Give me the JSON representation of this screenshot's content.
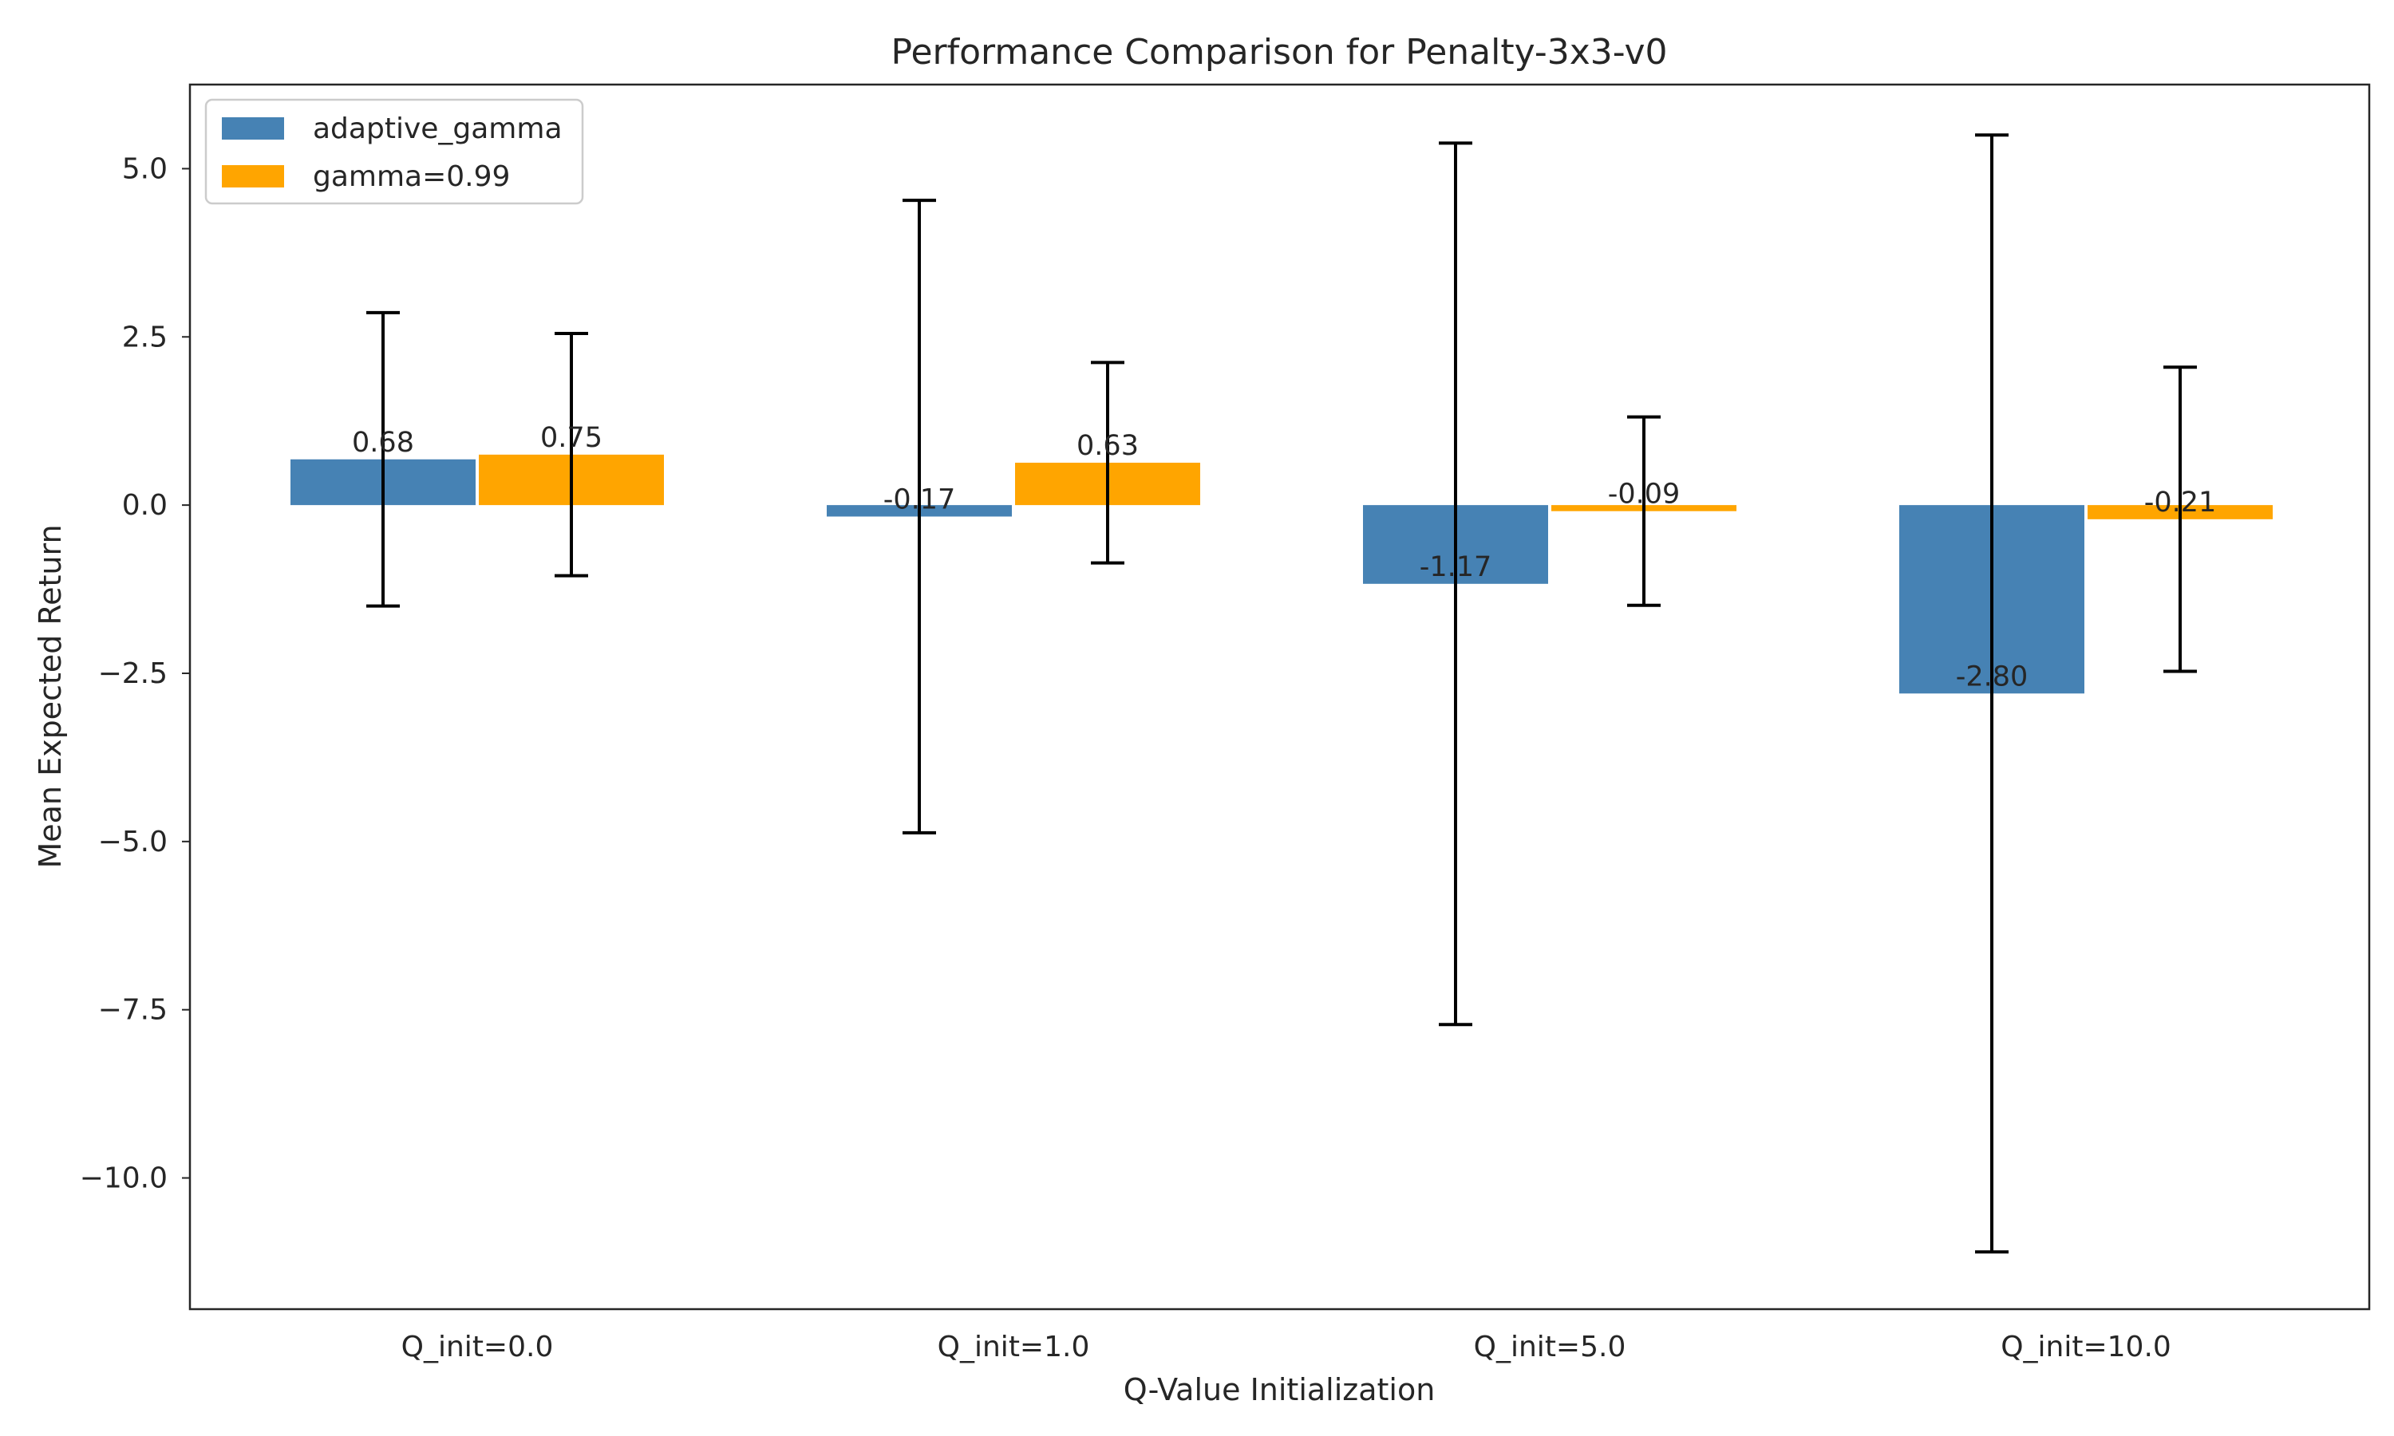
{
  "chart_data": {
    "type": "bar",
    "title": "Performance Comparison for Penalty-3x3-v0",
    "xlabel": "Q-Value Initialization",
    "ylabel": "Mean Expected Return",
    "categories": [
      "Q_init=0.0",
      "Q_init=1.0",
      "Q_init=5.0",
      "Q_init=10.0"
    ],
    "series": [
      {
        "name": "adaptive_gamma",
        "color": "#4682B4",
        "values": [
          0.68,
          -0.17,
          -1.17,
          -2.8
        ],
        "errors": [
          2.18,
          4.7,
          6.55,
          8.3
        ],
        "labels": [
          "0.68",
          "-0.17",
          "-1.17",
          "-2.80"
        ]
      },
      {
        "name": "gamma=0.99",
        "color": "#FFA500",
        "values": [
          0.75,
          0.63,
          -0.09,
          -0.21
        ],
        "errors": [
          1.8,
          1.49,
          1.4,
          2.26
        ],
        "labels": [
          "0.75",
          "0.63",
          "-0.09",
          "-0.21"
        ]
      }
    ],
    "ylim": [
      -11.95,
      6.25
    ],
    "yticks": [
      5.0,
      2.5,
      0.0,
      -2.5,
      -5.0,
      -7.5,
      -10.0
    ],
    "ytick_labels": [
      "5.0",
      "2.5",
      "0.0",
      "−2.5",
      "−5.0",
      "−7.5",
      "−10.0"
    ],
    "grid": false,
    "legend_position": "upper-left",
    "error_bar_color": "#000000"
  }
}
